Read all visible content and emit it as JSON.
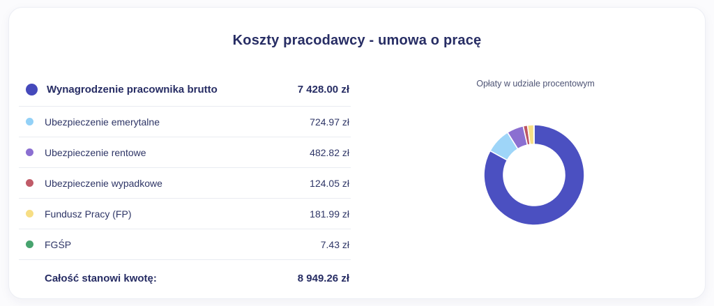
{
  "card": {
    "title": "Koszty pracodawcy - umowa o pracę"
  },
  "table": {
    "rows": [
      {
        "label": "Wynagrodzenie pracownika brutto",
        "value": "7 428.00 zł",
        "color": "#4549bb"
      },
      {
        "label": "Ubezpieczenie emerytalne",
        "value": "724.97 zł",
        "color": "#93d1f7"
      },
      {
        "label": "Ubezpieczenie rentowe",
        "value": "482.82 zł",
        "color": "#8b6fd1"
      },
      {
        "label": "Ubezpieczenie wypadkowe",
        "value": "124.05 zł",
        "color": "#c05b68"
      },
      {
        "label": "Fundusz Pracy (FP)",
        "value": "181.99 zł",
        "color": "#f7de84"
      },
      {
        "label": "FGŚP",
        "value": "7.43 zł",
        "color": "#47a36e"
      }
    ],
    "total": {
      "label": "Całość stanowi kwotę:",
      "value": "8 949.26 zł"
    }
  },
  "chart": {
    "caption": "Opłaty w udziale procentowym"
  },
  "chart_data": {
    "type": "pie",
    "subtype": "doughnut",
    "title": "Opłaty w udziale procentowym",
    "labels": [
      "Wynagrodzenie pracownika brutto",
      "Ubezpieczenie emerytalne",
      "Ubezpieczenie rentowe",
      "Ubezpieczenie wypadkowe",
      "Fundusz Pracy (FP)",
      "FGŚP"
    ],
    "values_zl": [
      7428.0,
      724.97,
      482.82,
      124.05,
      181.99,
      7.43
    ],
    "percentages": [
      83.0,
      8.1,
      5.4,
      1.39,
      2.03,
      0.08
    ],
    "total_zl": 8949.26,
    "colors": [
      "#4b50c1",
      "#9ed5f8",
      "#8b6fd1",
      "#bd5463",
      "#f7de84",
      "#47a36e"
    ],
    "legend_position": "none",
    "start_angle_deg": 0,
    "direction": "clockwise",
    "outer_radius_px": 72,
    "inner_radius_px": 44
  }
}
